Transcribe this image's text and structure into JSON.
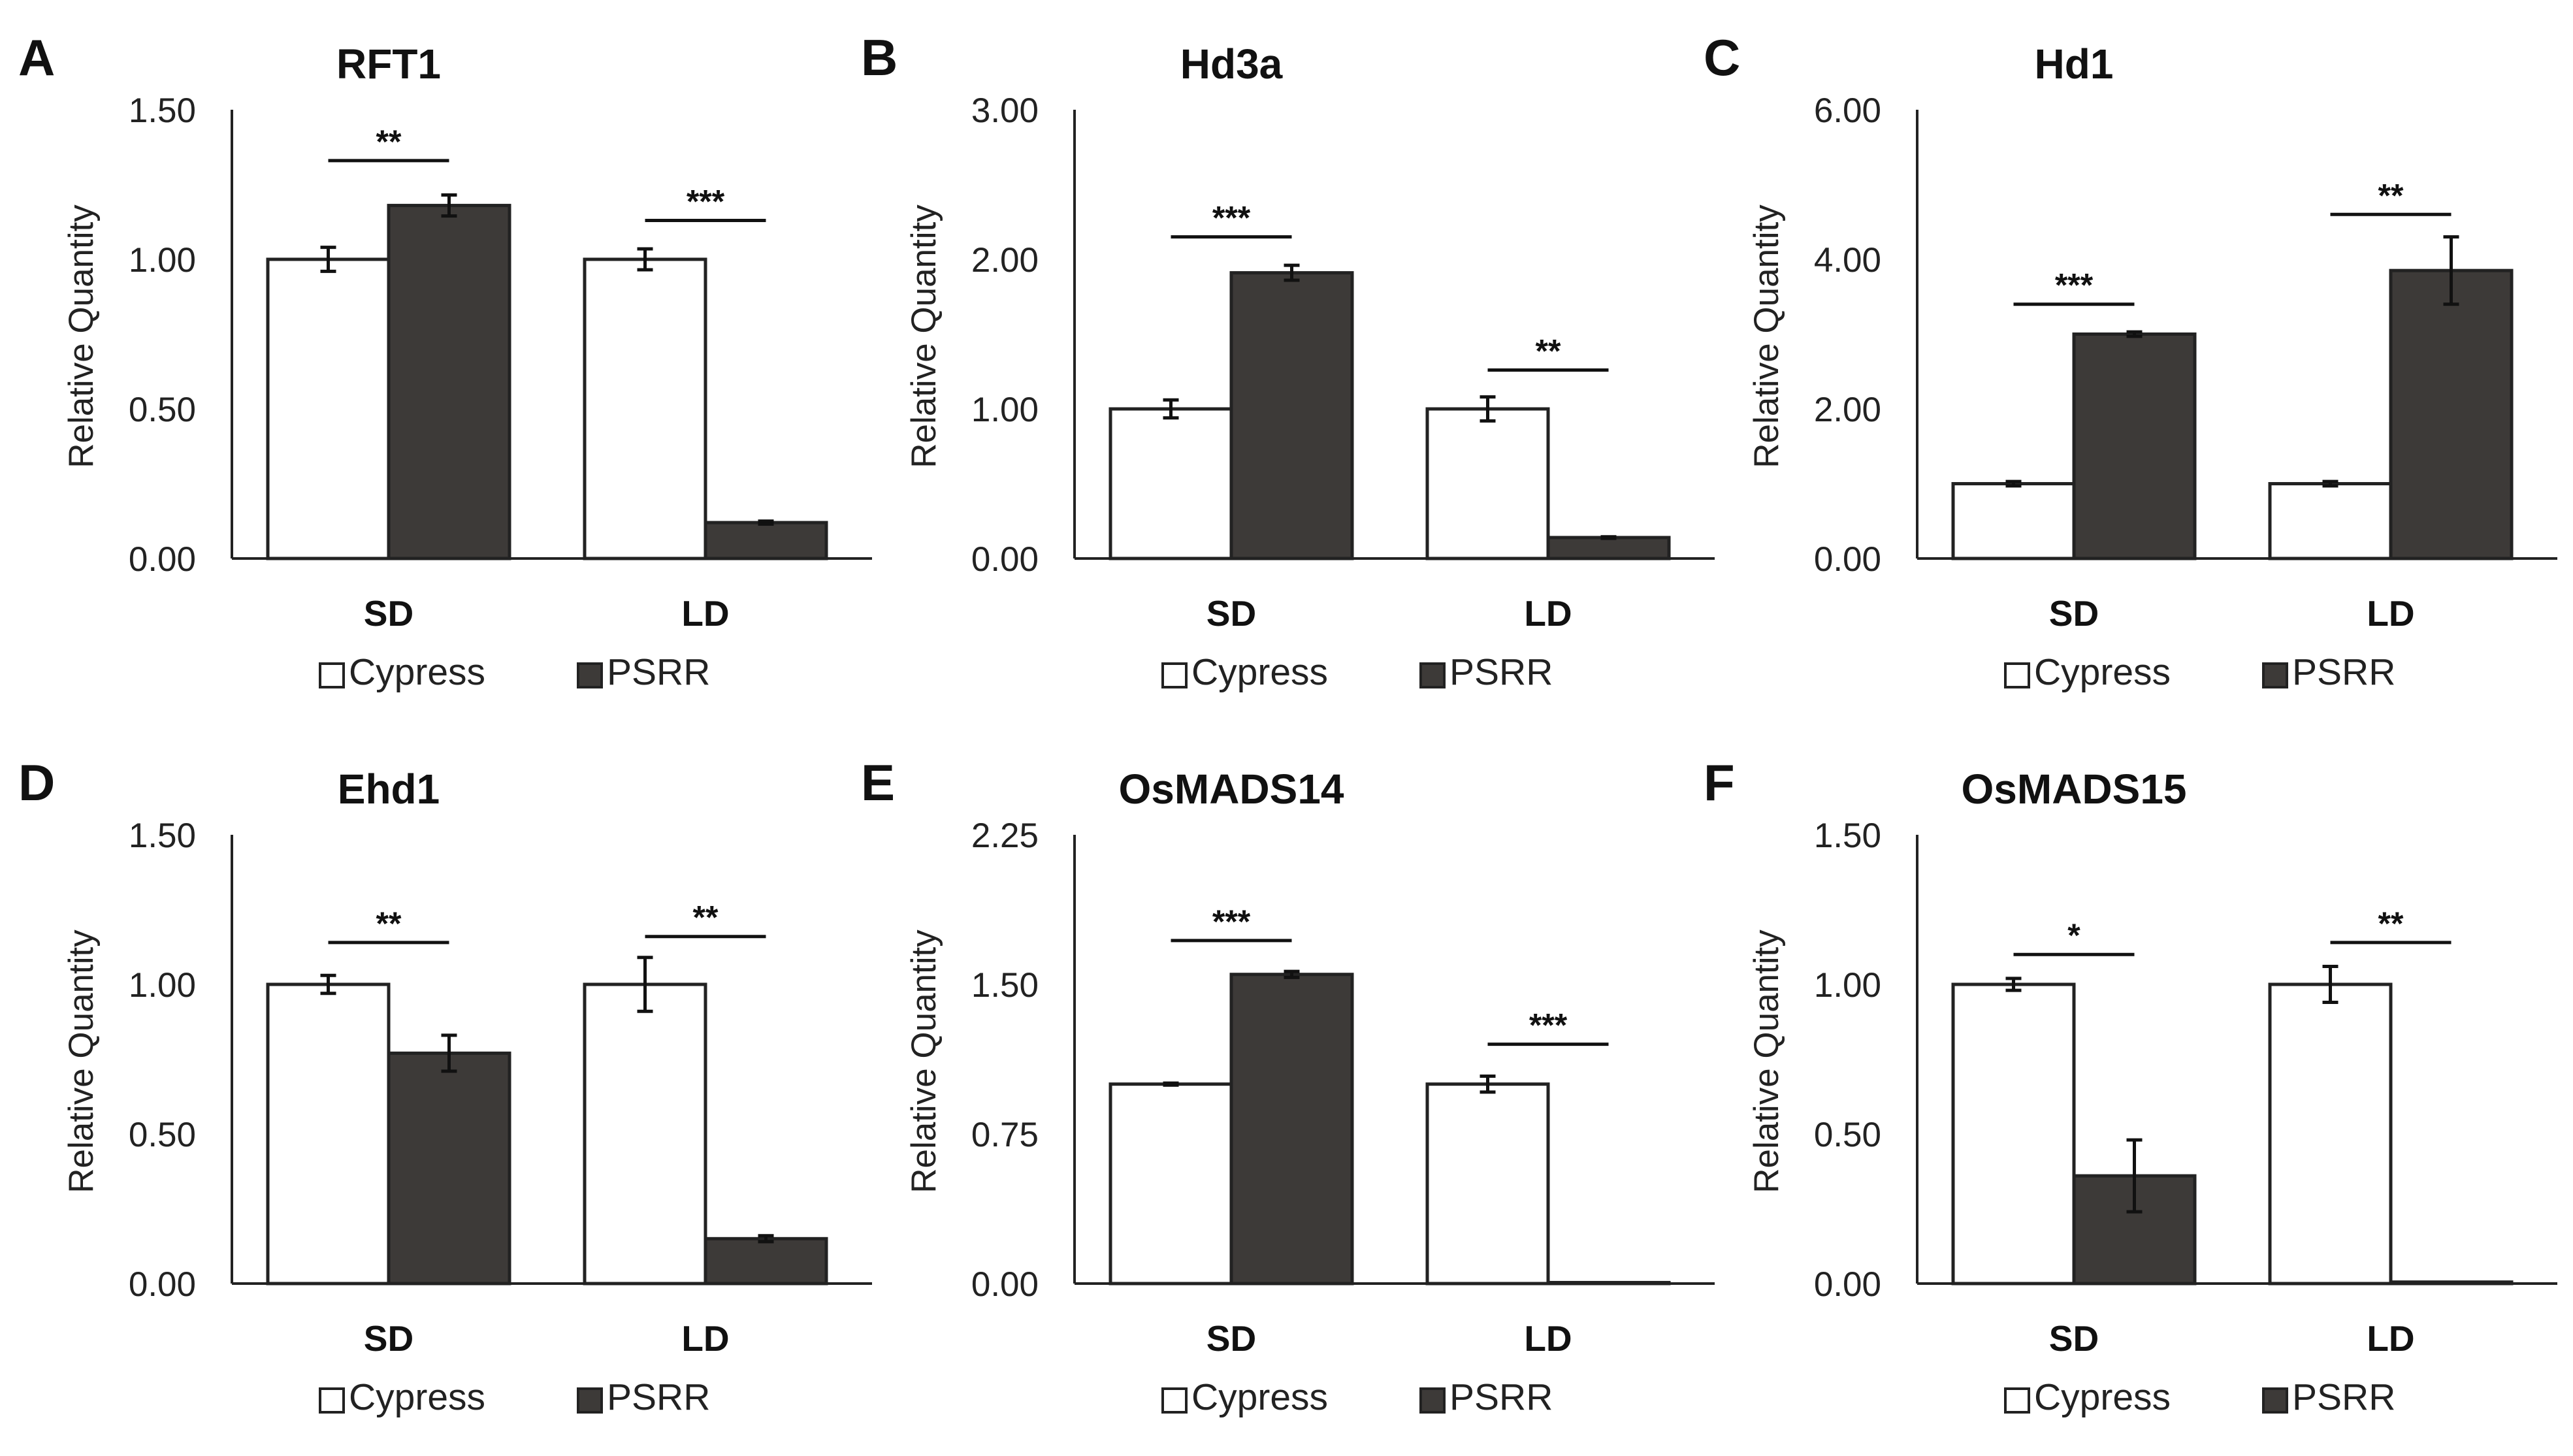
{
  "colors": {
    "cypress": "#ffffff",
    "psrr": "#3d3a38",
    "line": "#222222"
  },
  "chart_data": [
    {
      "panel": "A",
      "type": "bar",
      "title": "RFT1",
      "ylabel": "Relative Quantity",
      "categories": [
        "SD",
        "LD"
      ],
      "ylim": [
        0,
        1.5
      ],
      "yticks": [
        0,
        0.5,
        1.0,
        1.5
      ],
      "tick_labels": [
        "0.00",
        "0.50",
        "1.00",
        "1.50"
      ],
      "series": [
        {
          "name": "Cypress",
          "values": [
            1.0,
            1.0
          ],
          "errors": [
            0.04,
            0.035
          ]
        },
        {
          "name": "PSRR",
          "values": [
            1.18,
            0.12
          ],
          "errors": [
            0.035,
            0.005
          ]
        }
      ],
      "significance": [
        {
          "category": "SD",
          "label": "**",
          "y": 1.33
        },
        {
          "category": "LD",
          "label": "***",
          "y": 1.13
        }
      ]
    },
    {
      "panel": "B",
      "type": "bar",
      "title": "Hd3a",
      "ylabel": "Relative Quantity",
      "categories": [
        "SD",
        "LD"
      ],
      "ylim": [
        0,
        3.0
      ],
      "yticks": [
        0,
        1.0,
        2.0,
        3.0
      ],
      "tick_labels": [
        "0.00",
        "1.00",
        "2.00",
        "3.00"
      ],
      "series": [
        {
          "name": "Cypress",
          "values": [
            1.0,
            1.0
          ],
          "errors": [
            0.06,
            0.08
          ]
        },
        {
          "name": "PSRR",
          "values": [
            1.91,
            0.14
          ],
          "errors": [
            0.05,
            0.005
          ]
        }
      ],
      "significance": [
        {
          "category": "SD",
          "label": "***",
          "y": 2.15
        },
        {
          "category": "LD",
          "label": "**",
          "y": 1.26
        }
      ]
    },
    {
      "panel": "C",
      "type": "bar",
      "title": "Hd1",
      "ylabel": "Relative Quantity",
      "categories": [
        "SD",
        "LD"
      ],
      "ylim": [
        0,
        6.0
      ],
      "yticks": [
        0,
        2.0,
        4.0,
        6.0
      ],
      "tick_labels": [
        "0.00",
        "2.00",
        "4.00",
        "6.00"
      ],
      "series": [
        {
          "name": "Cypress",
          "values": [
            1.0,
            1.0
          ],
          "errors": [
            0.03,
            0.03
          ]
        },
        {
          "name": "PSRR",
          "values": [
            3.0,
            3.85
          ],
          "errors": [
            0.03,
            0.45
          ]
        }
      ],
      "significance": [
        {
          "category": "SD",
          "label": "***",
          "y": 3.4
        },
        {
          "category": "LD",
          "label": "**",
          "y": 4.6
        }
      ]
    },
    {
      "panel": "D",
      "type": "bar",
      "title": "Ehd1",
      "ylabel": "Relative Quantity",
      "categories": [
        "SD",
        "LD"
      ],
      "ylim": [
        0,
        1.5
      ],
      "yticks": [
        0,
        0.5,
        1.0,
        1.5
      ],
      "tick_labels": [
        "0.00",
        "0.50",
        "1.00",
        "1.50"
      ],
      "series": [
        {
          "name": "Cypress",
          "values": [
            1.0,
            1.0
          ],
          "errors": [
            0.03,
            0.09
          ]
        },
        {
          "name": "PSRR",
          "values": [
            0.77,
            0.15
          ],
          "errors": [
            0.06,
            0.01
          ]
        }
      ],
      "significance": [
        {
          "category": "SD",
          "label": "**",
          "y": 1.14
        },
        {
          "category": "LD",
          "label": "**",
          "y": 1.16
        }
      ]
    },
    {
      "panel": "E",
      "type": "bar",
      "title": "OsMADS14",
      "ylabel": "Relative Quantity",
      "categories": [
        "SD",
        "LD"
      ],
      "ylim": [
        0,
        2.25
      ],
      "yticks": [
        0,
        0.75,
        1.5,
        2.25
      ],
      "tick_labels": [
        "0.00",
        "0.75",
        "1.50",
        "2.25"
      ],
      "series": [
        {
          "name": "Cypress",
          "values": [
            1.0,
            1.0
          ],
          "errors": [
            0.005,
            0.04
          ]
        },
        {
          "name": "PSRR",
          "values": [
            1.55,
            0.005
          ],
          "errors": [
            0.015,
            0.0
          ]
        }
      ],
      "significance": [
        {
          "category": "SD",
          "label": "***",
          "y": 1.72
        },
        {
          "category": "LD",
          "label": "***",
          "y": 1.2
        }
      ]
    },
    {
      "panel": "F",
      "type": "bar",
      "title": "OsMADS15",
      "ylabel": "Relative Quantity",
      "categories": [
        "SD",
        "LD"
      ],
      "ylim": [
        0,
        1.5
      ],
      "yticks": [
        0,
        0.5,
        1.0,
        1.5
      ],
      "tick_labels": [
        "0.00",
        "0.50",
        "1.00",
        "1.50"
      ],
      "series": [
        {
          "name": "Cypress",
          "values": [
            1.0,
            1.0
          ],
          "errors": [
            0.02,
            0.06
          ]
        },
        {
          "name": "PSRR",
          "values": [
            0.36,
            0.005
          ],
          "errors": [
            0.12,
            0.0
          ]
        }
      ],
      "significance": [
        {
          "category": "SD",
          "label": "*",
          "y": 1.1
        },
        {
          "category": "LD",
          "label": "**",
          "y": 1.14
        }
      ]
    }
  ]
}
